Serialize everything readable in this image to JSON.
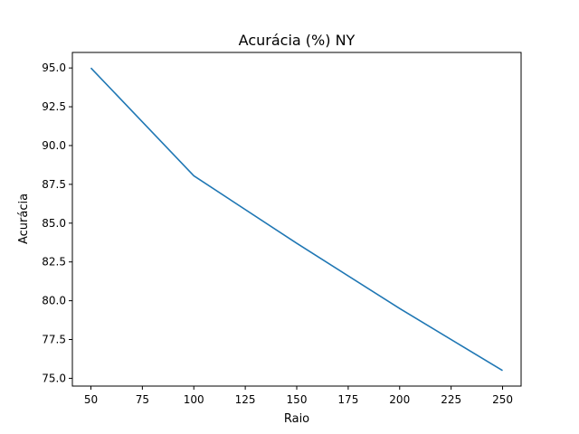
{
  "chart_data": {
    "type": "line",
    "title": "Acurácia (%) NY",
    "xlabel": "Raio",
    "ylabel": "Acurácia",
    "x": [
      50,
      100,
      150,
      200,
      250
    ],
    "series": [
      {
        "color": "#1f77b4",
        "values": [
          95.0,
          88.05,
          83.7,
          79.5,
          75.5
        ]
      }
    ],
    "xlim": [
      41,
      259
    ],
    "ylim": [
      74.5,
      96.0
    ],
    "xticks": [
      "50",
      "75",
      "100",
      "125",
      "150",
      "175",
      "200",
      "225",
      "250"
    ],
    "yticks": [
      "75.0",
      "77.5",
      "80.0",
      "82.5",
      "85.0",
      "87.5",
      "90.0",
      "92.5",
      "95.0"
    ],
    "grid": false,
    "legend": "none"
  }
}
